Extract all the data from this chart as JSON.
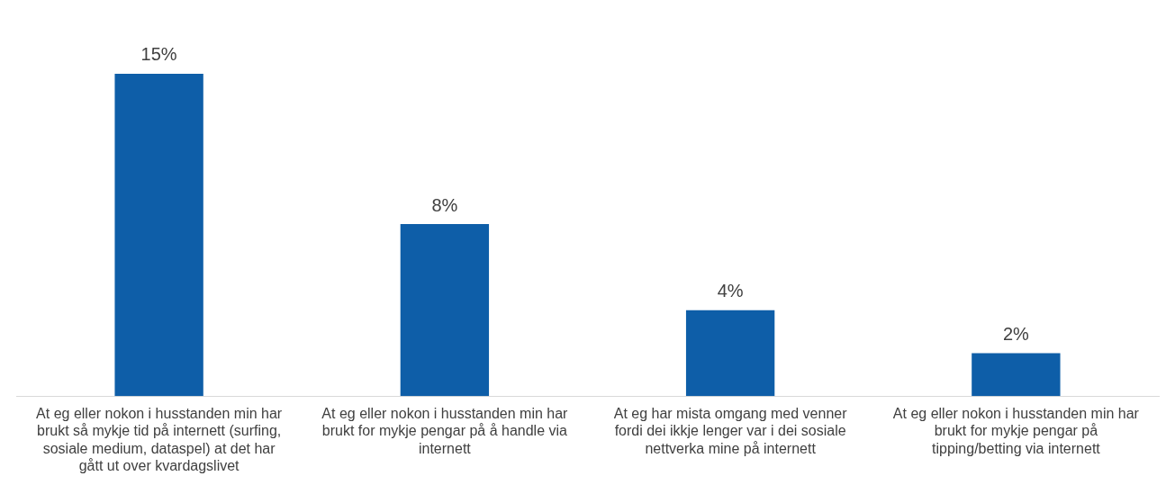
{
  "chart_data": {
    "type": "bar",
    "categories": [
      "At eg eller nokon i husstanden min har brukt så mykje tid på internett (surfing, sosiale medium, dataspel) at det har gått ut over kvardagslivet",
      "At eg eller nokon i husstanden min har brukt for mykje pengar på å handle via internett",
      "At eg har mista omgang med venner fordi dei ikkje lenger var i dei sosiale nettverka mine på internett",
      "At eg eller nokon i husstanden min har brukt for mykje pengar på tipping/betting via internett"
    ],
    "values": [
      15,
      8,
      4,
      2
    ],
    "value_labels": [
      "15%",
      "8%",
      "4%",
      "2%"
    ],
    "color": "#0e5ea8",
    "grid": false,
    "legend": false
  }
}
